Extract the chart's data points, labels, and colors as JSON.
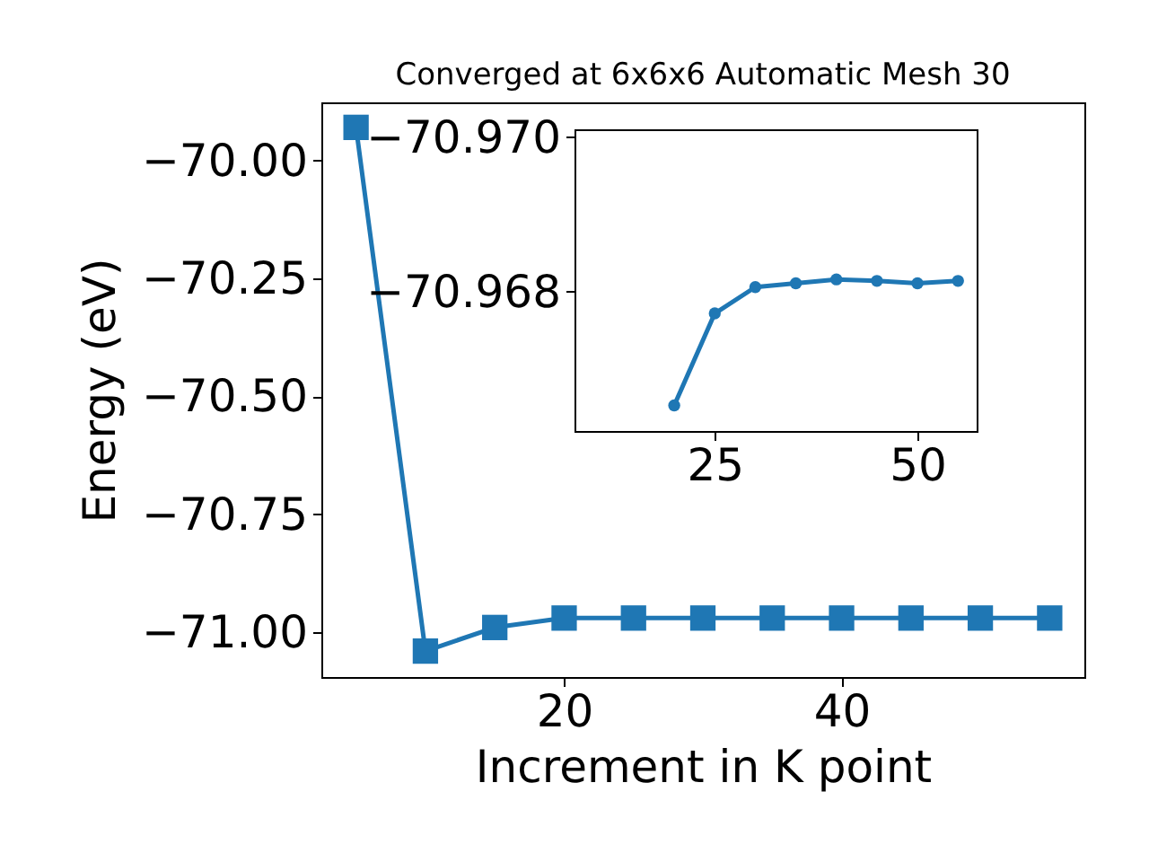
{
  "chart_data": [
    {
      "type": "line",
      "title": "Converged at 6x6x6 Automatic Mesh 30",
      "xlabel": "Increment in K point",
      "ylabel": "Energy (eV)",
      "x": [
        5,
        10,
        15,
        20,
        25,
        30,
        35,
        40,
        45,
        50,
        55
      ],
      "series": [
        {
          "color": "#1f77b4",
          "values": [
            -69.93,
            -71.04,
            -70.99,
            -70.97,
            -70.97,
            -70.97,
            -70.97,
            -70.97,
            -70.97,
            -70.97,
            -70.97
          ]
        }
      ],
      "xlim": [
        2.5,
        57.5
      ],
      "ylim": [
        -71.095,
        -69.877
      ],
      "xticks": [
        20,
        40
      ],
      "yticks": [
        {
          "value": -71,
          "label": "−71.00"
        },
        {
          "value": -70.75,
          "label": "−70.75"
        },
        {
          "value": -70.5,
          "label": "−70.50"
        },
        {
          "value": -70.25,
          "label": "−70.25"
        },
        {
          "value": -70,
          "label": "−70.00"
        }
      ],
      "marker": "square",
      "line_style": "solid"
    },
    {
      "type": "line",
      "x": [
        20,
        25,
        30,
        35,
        40,
        45,
        50,
        55
      ],
      "series": [
        {
          "color": "#1f77b4",
          "values": [
            -70.96653,
            -70.96772,
            -70.96806,
            -70.96811,
            -70.96816,
            -70.96814,
            -70.96811,
            -70.96814
          ]
        }
      ],
      "xlim": [
        7.7,
        57.3
      ],
      "ylim": [
        -70.9662,
        -70.9701
      ],
      "xticks": [
        25,
        50
      ],
      "yticks": [
        {
          "value": -70.97,
          "label": "−70.970"
        },
        {
          "value": -70.968,
          "label": "−70.968"
        }
      ],
      "marker": "circle",
      "line_style": "solid"
    }
  ]
}
